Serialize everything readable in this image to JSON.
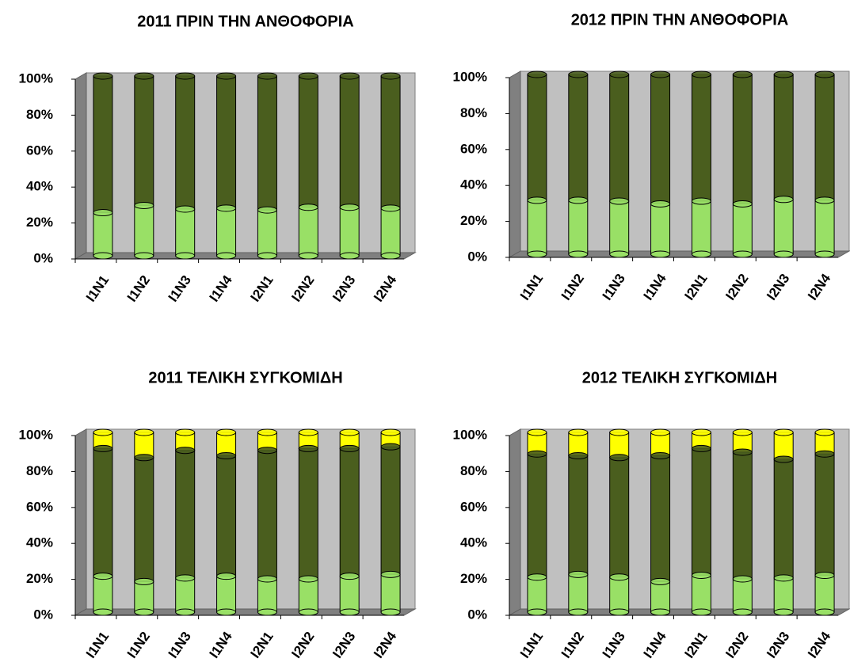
{
  "chart_data": [
    {
      "type": "bar",
      "stacked": true,
      "title": "2011 ΠΡΙΝ ΤΗΝ ΑΝΘΟΦΟΡΙΑ",
      "categories": [
        "I1N1",
        "I1N2",
        "I1N3",
        "I1N4",
        "I2N1",
        "I2N2",
        "I2N3",
        "I2N4"
      ],
      "series": [
        {
          "color": "#99e066",
          "values": [
            24,
            28,
            26,
            26.5,
            25.5,
            27,
            27,
            26.5
          ]
        },
        {
          "color": "#4a5e1e",
          "values": [
            76,
            72,
            74,
            73.5,
            74.5,
            73,
            73,
            73.5
          ]
        }
      ],
      "ylim": [
        0,
        100
      ],
      "yticks": [
        {
          "value": 0,
          "label": "0%"
        },
        {
          "value": 20,
          "label": "20%"
        },
        {
          "value": 40,
          "label": "40%"
        },
        {
          "value": 60,
          "label": "60%"
        },
        {
          "value": 80,
          "label": "80%"
        },
        {
          "value": 100,
          "label": "100%"
        }
      ],
      "grid": false
    },
    {
      "type": "bar",
      "stacked": true,
      "title": "2012  ΠΡΙΝ ΤΗΝ ΑΝΘΟΦΟΡΙΑ",
      "categories": [
        "I1N1",
        "I1N2",
        "I1N3",
        "I1N4",
        "I2N1",
        "I2N2",
        "I2N3",
        "I2N4"
      ],
      "series": [
        {
          "color": "#99e066",
          "values": [
            30,
            30,
            29.5,
            28,
            29.5,
            28,
            30.5,
            30
          ]
        },
        {
          "color": "#4a5e1e",
          "values": [
            70,
            70,
            70.5,
            72,
            70.5,
            72,
            69.5,
            70
          ]
        }
      ],
      "ylim": [
        0,
        100
      ],
      "yticks": [
        {
          "value": 0,
          "label": "0%"
        },
        {
          "value": 20,
          "label": "20%"
        },
        {
          "value": 40,
          "label": "40%"
        },
        {
          "value": 60,
          "label": "60%"
        },
        {
          "value": 80,
          "label": "80%"
        },
        {
          "value": 100,
          "label": "100%"
        }
      ],
      "grid": false
    },
    {
      "type": "bar",
      "stacked": true,
      "title": "2011 ΤΕΛΙΚΗ ΣΥΓΚΟΜΙΔΗ",
      "categories": [
        "I1N1",
        "I1N2",
        "I1N3",
        "I1N4",
        "I2N1",
        "I2N2",
        "I2N3",
        "I2N4"
      ],
      "series": [
        {
          "color": "#99e066",
          "values": [
            20,
            17,
            19,
            20,
            18.5,
            18.5,
            20,
            21
          ]
        },
        {
          "color": "#4a5e1e",
          "values": [
            71,
            69,
            71,
            67,
            71.5,
            72.5,
            71,
            71
          ]
        },
        {
          "color": "#ffff00",
          "values": [
            9,
            14,
            10,
            13,
            10,
            9,
            9,
            8
          ]
        }
      ],
      "ylim": [
        0,
        100
      ],
      "yticks": [
        {
          "value": 0,
          "label": "0%"
        },
        {
          "value": 20,
          "label": "20%"
        },
        {
          "value": 40,
          "label": "40%"
        },
        {
          "value": 60,
          "label": "60%"
        },
        {
          "value": 80,
          "label": "80%"
        },
        {
          "value": 100,
          "label": "100%"
        }
      ],
      "grid": false
    },
    {
      "type": "bar",
      "stacked": true,
      "title": "2012 ΤΕΛΙΚΗ ΣΥΓΚΟΜΙΔΗ",
      "categories": [
        "I1N1",
        "I1N2",
        "I1N3",
        "I1N4",
        "I2N1",
        "I2N2",
        "I2N3",
        "I2N4"
      ],
      "series": [
        {
          "color": "#99e066",
          "values": [
            19.5,
            21,
            19.5,
            17,
            20.5,
            18.5,
            19,
            20.5
          ]
        },
        {
          "color": "#4a5e1e",
          "values": [
            68.5,
            66,
            66.5,
            70,
            70.5,
            70.5,
            66,
            67.5
          ]
        },
        {
          "color": "#ffff00",
          "values": [
            12,
            13,
            14,
            13,
            9,
            11,
            15,
            12
          ]
        }
      ],
      "ylim": [
        0,
        100
      ],
      "yticks": [
        {
          "value": 0,
          "label": "0%"
        },
        {
          "value": 20,
          "label": "20%"
        },
        {
          "value": 40,
          "label": "40%"
        },
        {
          "value": 60,
          "label": "60%"
        },
        {
          "value": 80,
          "label": "80%"
        },
        {
          "value": 100,
          "label": "100%"
        }
      ],
      "grid": false
    }
  ]
}
